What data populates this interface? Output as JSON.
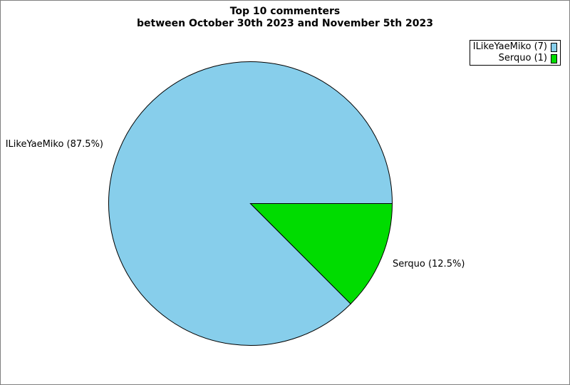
{
  "chart_data": {
    "type": "pie",
    "title": "Top 10 commenters",
    "subtitle": "between October 30th 2023 and November 5th 2023",
    "categories": [
      "ILikeYaeMiko",
      "Serquo"
    ],
    "values": [
      7,
      1
    ],
    "percentages": [
      87.5,
      12.5
    ],
    "colors": [
      "#87CEEB",
      "#00DC00"
    ],
    "edge_color": "#000000",
    "start_angle_deg": 0,
    "counterclockwise": true,
    "legend_position": "top-right",
    "legend": [
      {
        "label": "ILikeYaeMiko (7)",
        "color": "#87CEEB"
      },
      {
        "label": "Serquo (1)",
        "color": "#00DC00"
      }
    ],
    "slice_labels": [
      {
        "text": "ILikeYaeMiko (87.5%)"
      },
      {
        "text": "Serquo (12.5%)"
      }
    ]
  }
}
